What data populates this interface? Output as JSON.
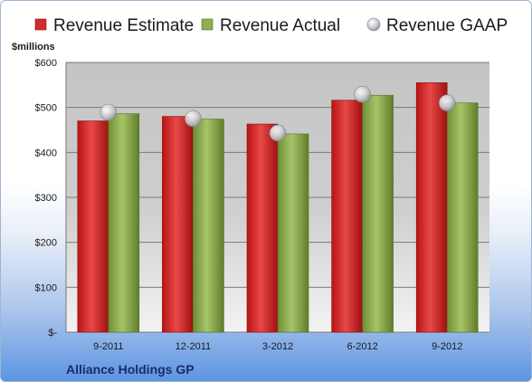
{
  "chart_data": {
    "type": "bar",
    "ylabel": "$millions",
    "footer": "Alliance Holdings GP",
    "ylim": [
      0,
      600
    ],
    "yticks": [
      {
        "value": 0,
        "label": "$-"
      },
      {
        "value": 100,
        "label": "$100"
      },
      {
        "value": 200,
        "label": "$200"
      },
      {
        "value": 300,
        "label": "$300"
      },
      {
        "value": 400,
        "label": "$400"
      },
      {
        "value": 500,
        "label": "$500"
      },
      {
        "value": 600,
        "label": "$600"
      }
    ],
    "categories": [
      "9-2011",
      "12-2011",
      "3-2012",
      "6-2012",
      "9-2012"
    ],
    "series": [
      {
        "name": "Revenue Estimate",
        "kind": "bar",
        "color": "#d42a2a",
        "values": [
          470,
          480,
          463,
          516,
          555
        ]
      },
      {
        "name": "Revenue Actual",
        "kind": "bar",
        "color": "#8eb04d",
        "values": [
          486,
          474,
          441,
          527,
          510
        ]
      },
      {
        "name": "Revenue GAAP",
        "kind": "marker",
        "color": "#c9cbd0",
        "values": [
          489,
          475,
          443,
          529,
          510
        ]
      }
    ],
    "legend": "top",
    "grid": true
  }
}
